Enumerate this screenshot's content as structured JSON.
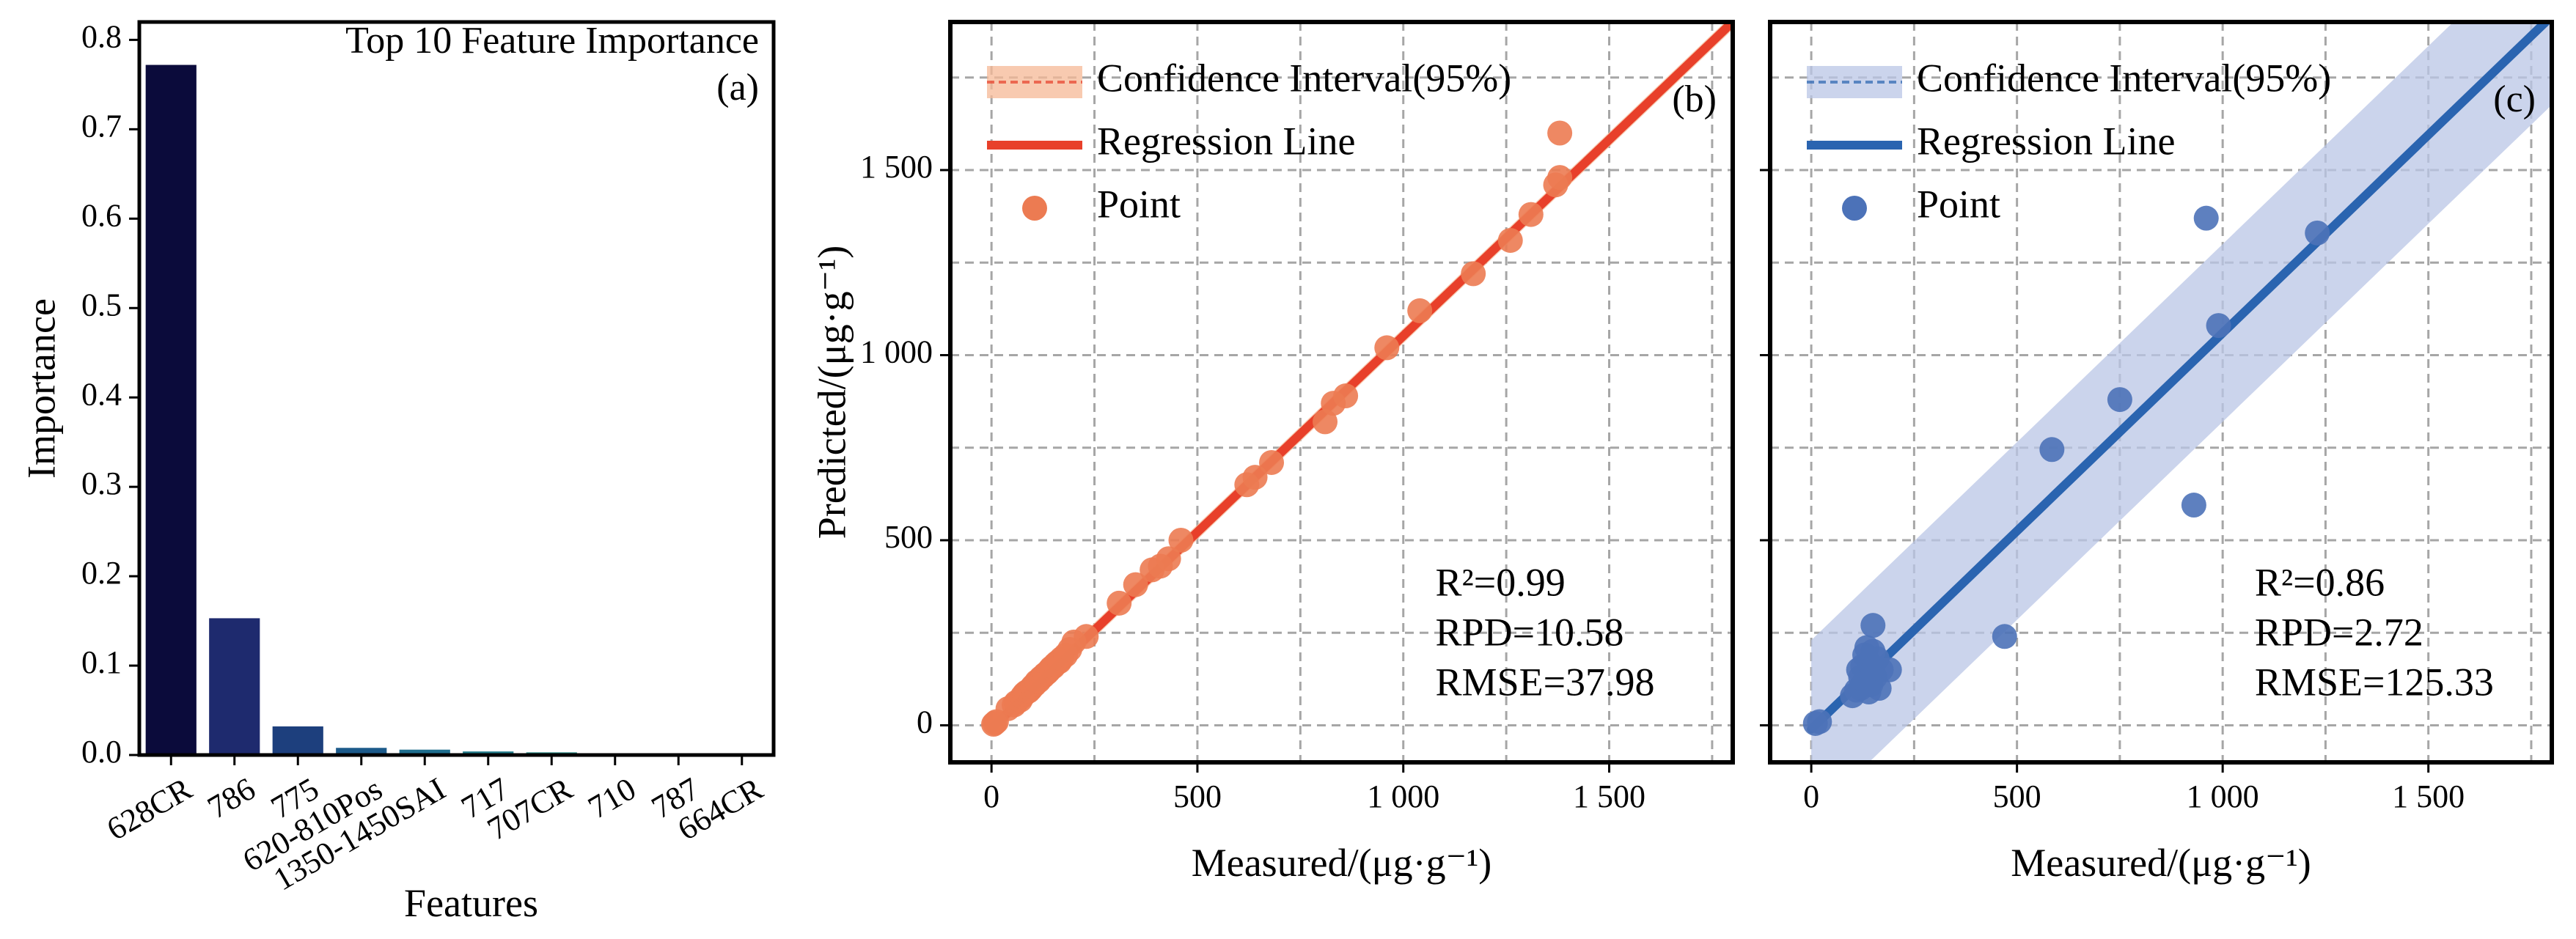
{
  "chart_data": [
    {
      "type": "bar",
      "panel_label": "(a)",
      "title": "Top 10 Feature Importance",
      "xlabel": "Features",
      "ylabel": "Importance",
      "ylim": [
        0,
        0.82
      ],
      "yticks": [
        "0.0",
        "0.1",
        "0.2",
        "0.3",
        "0.4",
        "0.5",
        "0.6",
        "0.7",
        "0.8"
      ],
      "categories": [
        "628CR",
        "786",
        "775",
        "620-810Pos",
        "1350-1450SAI",
        "717",
        "707CR",
        "710",
        "787",
        "664CR"
      ],
      "values": [
        0.772,
        0.153,
        0.032,
        0.008,
        0.006,
        0.004,
        0.003,
        0.002,
        0.001,
        0.001
      ],
      "colors": [
        "#0b0b3b",
        "#1e2a6e",
        "#1d3f7d",
        "#1c5a8a",
        "#1f6e8e",
        "#247e8c",
        "#2b8a86",
        "#35957d",
        "#47a06f",
        "#5aab62"
      ],
      "grid": false
    },
    {
      "type": "scatter",
      "panel_label": "(b)",
      "xlabel": "Measured/(μg·g⁻¹)",
      "ylabel": "Predicted/(μg·g⁻¹)",
      "xlim": [
        -100,
        1800
      ],
      "ylim": [
        -100,
        1900
      ],
      "xticks": [
        "0",
        "500",
        "1 000",
        "1 500"
      ],
      "yticks": [
        "0",
        "500",
        "1 000",
        "1 500"
      ],
      "grid": true,
      "legend": {
        "position": "top-left",
        "entries": [
          "Confidence Interval(95%)",
          "Regression Line",
          "Point"
        ]
      },
      "colors": {
        "point": "#ec7b52",
        "line": "#e8402a",
        "ci": "#f5b896"
      },
      "regression": {
        "slope": 1.06,
        "intercept": -8,
        "ci_halfwidth": 20,
        "x_range": [
          0,
          1800
        ]
      },
      "stats": [
        "R²=0.99",
        "RPD=10.58",
        "RMSE=37.98"
      ],
      "points": [
        [
          5,
          3
        ],
        [
          8,
          6
        ],
        [
          12,
          10
        ],
        [
          40,
          45
        ],
        [
          55,
          55
        ],
        [
          60,
          62
        ],
        [
          70,
          68
        ],
        [
          75,
          78
        ],
        [
          80,
          85
        ],
        [
          85,
          90
        ],
        [
          90,
          92
        ],
        [
          95,
          98
        ],
        [
          100,
          105
        ],
        [
          105,
          110
        ],
        [
          110,
          118
        ],
        [
          115,
          120
        ],
        [
          120,
          128
        ],
        [
          125,
          132
        ],
        [
          130,
          138
        ],
        [
          135,
          142
        ],
        [
          140,
          148
        ],
        [
          145,
          155
        ],
        [
          150,
          158
        ],
        [
          155,
          165
        ],
        [
          160,
          170
        ],
        [
          165,
          172
        ],
        [
          170,
          180
        ],
        [
          180,
          190
        ],
        [
          190,
          205
        ],
        [
          200,
          225
        ],
        [
          230,
          240
        ],
        [
          310,
          330
        ],
        [
          350,
          380
        ],
        [
          390,
          420
        ],
        [
          410,
          430
        ],
        [
          430,
          450
        ],
        [
          460,
          500
        ],
        [
          620,
          650
        ],
        [
          640,
          670
        ],
        [
          680,
          710
        ],
        [
          810,
          820
        ],
        [
          830,
          870
        ],
        [
          860,
          890
        ],
        [
          960,
          1020
        ],
        [
          1040,
          1120
        ],
        [
          1170,
          1220
        ],
        [
          1260,
          1310
        ],
        [
          1310,
          1380
        ],
        [
          1370,
          1460
        ],
        [
          1380,
          1480
        ],
        [
          1380,
          1600
        ]
      ]
    },
    {
      "type": "scatter",
      "panel_label": "(c)",
      "xlabel": "Measured/(μg·g⁻¹)",
      "ylabel": "",
      "xlim": [
        -100,
        1800
      ],
      "ylim": [
        -100,
        1900
      ],
      "xticks": [
        "0",
        "500",
        "1 000",
        "1 500"
      ],
      "yticks": [],
      "grid": true,
      "legend": {
        "position": "top-left",
        "entries": [
          "Confidence Interval(95%)",
          "Regression Line",
          "Point"
        ]
      },
      "colors": {
        "point": "#4c72b8",
        "line": "#2a64b0",
        "ci": "#b9c6e6"
      },
      "regression": {
        "slope": 1.07,
        "intercept": -10,
        "ci_halfwidth": 240,
        "x_range": [
          0,
          1800
        ]
      },
      "stats": [
        "R²=0.86",
        "RPD=2.72",
        "RMSE=125.33"
      ],
      "points": [
        [
          10,
          5
        ],
        [
          20,
          10
        ],
        [
          100,
          80
        ],
        [
          110,
          95
        ],
        [
          115,
          150
        ],
        [
          120,
          100
        ],
        [
          120,
          130
        ],
        [
          125,
          160
        ],
        [
          130,
          190
        ],
        [
          130,
          120
        ],
        [
          135,
          210
        ],
        [
          140,
          170
        ],
        [
          140,
          90
        ],
        [
          145,
          110
        ],
        [
          150,
          150
        ],
        [
          150,
          200
        ],
        [
          150,
          270
        ],
        [
          155,
          130
        ],
        [
          160,
          180
        ],
        [
          165,
          100
        ],
        [
          170,
          150
        ],
        [
          190,
          150
        ],
        [
          470,
          240
        ],
        [
          585,
          745
        ],
        [
          750,
          880
        ],
        [
          930,
          595
        ],
        [
          960,
          1370
        ],
        [
          990,
          1080
        ],
        [
          1230,
          1330
        ]
      ]
    }
  ]
}
